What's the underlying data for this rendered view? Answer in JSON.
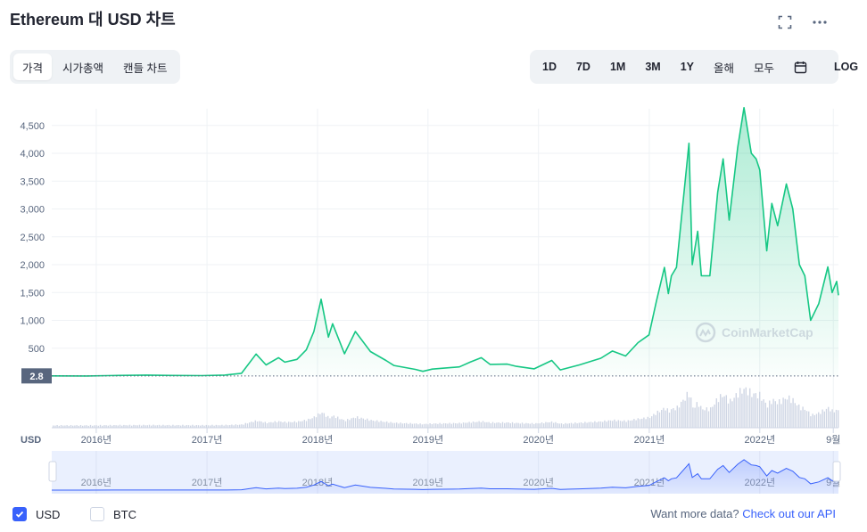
{
  "header": {
    "title": "Ethereum 대 USD 차트",
    "fullscreen_icon": "expand-icon",
    "more_icon": "more-horizontal-icon"
  },
  "view_tabs": [
    {
      "label": "가격",
      "active": true
    },
    {
      "label": "시가총액",
      "active": false
    },
    {
      "label": "캔들 차트",
      "active": false
    }
  ],
  "range_buttons": [
    {
      "label": "1D"
    },
    {
      "label": "7D"
    },
    {
      "label": "1M"
    },
    {
      "label": "3M"
    },
    {
      "label": "1Y"
    },
    {
      "label": "올해"
    },
    {
      "label": "모두"
    }
  ],
  "calendar_icon": "calendar-icon",
  "log_label": "LOG",
  "watermark": "CoinMarketCap",
  "currency_label": "USD",
  "price_marker": "2.8",
  "colors": {
    "line": "#16c784",
    "volume": "#cfd6e4",
    "navigator": "#3861fb",
    "accent": "#3861fb"
  },
  "chart_data": {
    "type": "area",
    "ylim": [
      0,
      4800
    ],
    "yticks": [
      500,
      1000,
      1500,
      2000,
      2500,
      3000,
      3500,
      4000,
      4500
    ],
    "ytick_labels": [
      "500",
      "1,000",
      "1,500",
      "2,000",
      "2,500",
      "3,000",
      "3,500",
      "4,000",
      "4,500"
    ],
    "x_range": [
      "2015-08-07",
      "2022-09-18"
    ],
    "xtick_labels": [
      "2016년",
      "2017년",
      "2018년",
      "2019년",
      "2020년",
      "2021년",
      "2022년",
      "9월"
    ],
    "xtick_dates": [
      "2016-01-01",
      "2017-01-01",
      "2018-01-01",
      "2019-01-01",
      "2020-01-01",
      "2021-01-01",
      "2022-01-01",
      "2022-09-01"
    ],
    "series": [
      {
        "values": [
          [
            "2015-08-07",
            2.8
          ],
          [
            "2015-12-01",
            0.9
          ],
          [
            "2016-03-15",
            11
          ],
          [
            "2016-06-15",
            18
          ],
          [
            "2016-09-01",
            12
          ],
          [
            "2016-12-15",
            8
          ],
          [
            "2017-03-01",
            18
          ],
          [
            "2017-04-25",
            50
          ],
          [
            "2017-06-12",
            395
          ],
          [
            "2017-07-15",
            200
          ],
          [
            "2017-08-25",
            330
          ],
          [
            "2017-09-15",
            250
          ],
          [
            "2017-10-25",
            300
          ],
          [
            "2017-11-25",
            470
          ],
          [
            "2017-12-20",
            800
          ],
          [
            "2018-01-13",
            1380
          ],
          [
            "2018-02-06",
            700
          ],
          [
            "2018-02-20",
            940
          ],
          [
            "2018-03-31",
            400
          ],
          [
            "2018-05-06",
            800
          ],
          [
            "2018-06-25",
            440
          ],
          [
            "2018-08-15",
            280
          ],
          [
            "2018-09-10",
            190
          ],
          [
            "2018-11-20",
            120
          ],
          [
            "2018-12-15",
            85
          ],
          [
            "2019-01-15",
            125
          ],
          [
            "2019-02-15",
            140
          ],
          [
            "2019-04-15",
            165
          ],
          [
            "2019-05-20",
            250
          ],
          [
            "2019-06-26",
            330
          ],
          [
            "2019-07-25",
            210
          ],
          [
            "2019-09-20",
            215
          ],
          [
            "2019-10-20",
            175
          ],
          [
            "2019-12-18",
            130
          ],
          [
            "2020-02-14",
            280
          ],
          [
            "2020-03-13",
            110
          ],
          [
            "2020-05-15",
            200
          ],
          [
            "2020-07-25",
            320
          ],
          [
            "2020-09-01",
            450
          ],
          [
            "2020-10-15",
            360
          ],
          [
            "2020-11-25",
            600
          ],
          [
            "2020-12-31",
            740
          ],
          [
            "2021-01-25",
            1350
          ],
          [
            "2021-02-20",
            1950
          ],
          [
            "2021-03-05",
            1480
          ],
          [
            "2021-03-15",
            1800
          ],
          [
            "2021-04-01",
            1950
          ],
          [
            "2021-05-12",
            4180
          ],
          [
            "2021-05-23",
            2000
          ],
          [
            "2021-06-10",
            2600
          ],
          [
            "2021-06-22",
            1800
          ],
          [
            "2021-07-20",
            1800
          ],
          [
            "2021-08-15",
            3300
          ],
          [
            "2021-09-02",
            3900
          ],
          [
            "2021-09-22",
            2800
          ],
          [
            "2021-10-20",
            4100
          ],
          [
            "2021-11-10",
            4820
          ],
          [
            "2021-12-04",
            4000
          ],
          [
            "2021-12-20",
            3900
          ],
          [
            "2022-01-01",
            3700
          ],
          [
            "2022-01-24",
            2250
          ],
          [
            "2022-02-10",
            3100
          ],
          [
            "2022-03-01",
            2700
          ],
          [
            "2022-03-30",
            3450
          ],
          [
            "2022-04-20",
            3000
          ],
          [
            "2022-05-12",
            2000
          ],
          [
            "2022-05-30",
            1800
          ],
          [
            "2022-06-18",
            1000
          ],
          [
            "2022-07-15",
            1300
          ],
          [
            "2022-08-14",
            1960
          ],
          [
            "2022-08-28",
            1500
          ],
          [
            "2022-09-12",
            1700
          ],
          [
            "2022-09-18",
            1450
          ]
        ]
      }
    ],
    "grid": true,
    "volume_bars": true,
    "navigator": true
  },
  "legend": [
    {
      "label": "USD",
      "checked": true
    },
    {
      "label": "BTC",
      "checked": false
    }
  ],
  "api_prompt": "Want more data?",
  "api_link": "Check out our API"
}
